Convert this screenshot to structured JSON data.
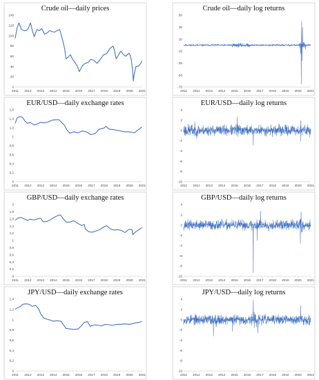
{
  "figure": {
    "color": "#4472C4"
  },
  "chart_data": [
    {
      "id": "oil_prices",
      "type": "line",
      "title": "Crude oil—daily prices",
      "x_ticks": [
        "2011",
        "2012",
        "2013",
        "2014",
        "2015",
        "2016",
        "2017",
        "2018",
        "2019",
        "2020",
        "2021"
      ],
      "ylim": [
        0,
        140
      ],
      "y_ticks": [
        "0",
        "20",
        "40",
        "60",
        "80",
        "100",
        "120",
        "140"
      ],
      "series": [
        {
          "x": [
            2011.0,
            2011.15,
            2011.3,
            2011.5,
            2011.7,
            2011.85,
            2012.0,
            2012.2,
            2012.35,
            2012.5,
            2012.7,
            2012.9,
            2013.1,
            2013.3,
            2013.5,
            2013.7,
            2013.9,
            2014.1,
            2014.3,
            2014.5,
            2014.6,
            2014.75,
            2014.9,
            2015.0,
            2015.15,
            2015.35,
            2015.5,
            2015.7,
            2015.9,
            2016.05,
            2016.3,
            2016.5,
            2016.75,
            2016.95,
            2017.2,
            2017.45,
            2017.7,
            2017.95,
            2018.2,
            2018.45,
            2018.7,
            2018.8,
            2018.95,
            2019.15,
            2019.3,
            2019.5,
            2019.7,
            2019.95,
            2020.05,
            2020.15,
            2020.25,
            2020.3,
            2020.35,
            2020.5,
            2020.7,
            2020.85,
            2020.98
          ],
          "y": [
            95,
            115,
            125,
            112,
            110,
            110,
            113,
            125,
            110,
            98,
            112,
            110,
            114,
            103,
            105,
            110,
            108,
            107,
            110,
            112,
            104,
            90,
            74,
            55,
            58,
            63,
            55,
            48,
            40,
            30,
            42,
            46,
            48,
            54,
            52,
            46,
            54,
            63,
            65,
            75,
            80,
            73,
            55,
            63,
            70,
            64,
            60,
            66,
            62,
            52,
            30,
            12,
            22,
            40,
            41,
            45,
            51
          ]
        }
      ]
    },
    {
      "id": "oil_returns",
      "type": "line",
      "title": "Crude oil—daily log returns",
      "x_ticks": [
        "2011",
        "2012",
        "2013",
        "2014",
        "2015",
        "2016",
        "2017",
        "2018",
        "2019",
        "2020",
        "2021"
      ],
      "ylim": [
        -70,
        50
      ],
      "y_ticks": [
        "-70",
        "-50",
        "-30",
        "-10",
        "10",
        "30",
        "50"
      ],
      "series": [
        {
          "x_start": 2011.0,
          "x_end": 2021.0,
          "n": 700,
          "seed": 11,
          "base": 1.3,
          "vol_periods": [
            {
              "from": 2014.8,
              "to": 2016.2,
              "scale": 2.1
            },
            {
              "from": 2020.1,
              "to": 2020.6,
              "scale": 3.6
            }
          ],
          "spikes": [
            {
              "x": 2020.25,
              "y": -65
            },
            {
              "x": 2020.29,
              "y": 40
            },
            {
              "x": 2020.32,
              "y": -26
            },
            {
              "x": 2020.36,
              "y": 30
            },
            {
              "x": 2020.2,
              "y": -14
            }
          ]
        }
      ]
    },
    {
      "id": "eurusd_rates",
      "type": "line",
      "title": "EUR/USD—daily exchange rates",
      "x_ticks": [
        "2011",
        "2012",
        "2013",
        "2014",
        "2015",
        "2016",
        "2017",
        "2018",
        "2019",
        "2020",
        "2021"
      ],
      "ylim": [
        0,
        1.6
      ],
      "y_ticks": [
        "0",
        "0,2",
        "0,4",
        "0,6",
        "0,8",
        "1",
        "1,2",
        "1,4",
        "1,6"
      ],
      "series": [
        {
          "x": [
            2011.0,
            2011.15,
            2011.35,
            2011.55,
            2011.75,
            2011.95,
            2012.2,
            2012.5,
            2012.75,
            2013.0,
            2013.3,
            2013.6,
            2013.9,
            2014.2,
            2014.45,
            2014.65,
            2014.9,
            2015.05,
            2015.3,
            2015.6,
            2015.95,
            2016.3,
            2016.6,
            2016.95,
            2017.3,
            2017.6,
            2017.95,
            2018.15,
            2018.4,
            2018.7,
            2018.95,
            2019.3,
            2019.6,
            2019.95,
            2020.2,
            2020.4,
            2020.6,
            2020.8,
            2020.98
          ],
          "y": [
            1.3,
            1.42,
            1.45,
            1.44,
            1.36,
            1.3,
            1.32,
            1.26,
            1.29,
            1.32,
            1.31,
            1.33,
            1.37,
            1.38,
            1.38,
            1.32,
            1.25,
            1.16,
            1.08,
            1.11,
            1.09,
            1.13,
            1.11,
            1.05,
            1.07,
            1.17,
            1.19,
            1.23,
            1.17,
            1.16,
            1.15,
            1.13,
            1.11,
            1.11,
            1.1,
            1.09,
            1.14,
            1.18,
            1.22
          ]
        }
      ]
    },
    {
      "id": "eurusd_returns",
      "type": "line",
      "title": "EUR/USD—daily log returns",
      "x_ticks": [
        "2011",
        "2012",
        "2013",
        "2014",
        "2015",
        "2016",
        "2017",
        "2018",
        "2019",
        "2020",
        "2021"
      ],
      "ylim": [
        -10,
        4
      ],
      "y_ticks": [
        "-10",
        "-8",
        "-6",
        "-4",
        "-2",
        "0",
        "2",
        "4"
      ],
      "series": [
        {
          "x_start": 2011.0,
          "x_end": 2021.0,
          "n": 700,
          "seed": 23,
          "base": 0.85,
          "vol_periods": [
            {
              "from": 2011.0,
              "to": 2012.2,
              "scale": 1.25
            },
            {
              "from": 2015.0,
              "to": 2015.6,
              "scale": 1.2
            }
          ],
          "spikes": [
            {
              "x": 2016.48,
              "y": -2.9
            },
            {
              "x": 2015.2,
              "y": 2.6
            },
            {
              "x": 2020.2,
              "y": -2.1
            },
            {
              "x": 2020.23,
              "y": 2.0
            }
          ]
        }
      ]
    },
    {
      "id": "gbpusd_rates",
      "type": "line",
      "title": "GBP/USD—daily exchange rates",
      "x_ticks": [
        "2011",
        "2012",
        "2013",
        "2014",
        "2015",
        "2016",
        "2017",
        "2018",
        "2019",
        "2020",
        "2021"
      ],
      "ylim": [
        0,
        2
      ],
      "y_ticks": [
        "0",
        "0,2",
        "0,4",
        "0,6",
        "0,8",
        "1",
        "1,2",
        "1,4",
        "1,6",
        "1,8",
        "2"
      ],
      "series": [
        {
          "x": [
            2011.0,
            2011.2,
            2011.45,
            2011.7,
            2011.95,
            2012.2,
            2012.5,
            2012.75,
            2013.0,
            2013.2,
            2013.5,
            2013.8,
            2014.1,
            2014.4,
            2014.55,
            2014.8,
            2015.0,
            2015.3,
            2015.6,
            2015.95,
            2016.2,
            2016.45,
            2016.5,
            2016.8,
            2017.1,
            2017.4,
            2017.7,
            2018.0,
            2018.2,
            2018.5,
            2018.8,
            2019.1,
            2019.4,
            2019.65,
            2019.95,
            2020.2,
            2020.25,
            2020.45,
            2020.7,
            2020.98
          ],
          "y": [
            1.56,
            1.62,
            1.64,
            1.6,
            1.56,
            1.59,
            1.57,
            1.6,
            1.62,
            1.52,
            1.53,
            1.58,
            1.65,
            1.7,
            1.71,
            1.6,
            1.51,
            1.51,
            1.55,
            1.47,
            1.42,
            1.44,
            1.33,
            1.24,
            1.23,
            1.27,
            1.31,
            1.38,
            1.41,
            1.32,
            1.29,
            1.3,
            1.27,
            1.22,
            1.31,
            1.3,
            1.16,
            1.23,
            1.29,
            1.36
          ]
        }
      ]
    },
    {
      "id": "gbpusd_returns",
      "type": "line",
      "title": "GBP/USD—daily log returns",
      "x_ticks": [
        "2011",
        "2012",
        "2013",
        "2014",
        "2015",
        "2016",
        "2017",
        "2018",
        "2019",
        "2020",
        "2021"
      ],
      "ylim": [
        -10,
        4
      ],
      "y_ticks": [
        "-10",
        "-8",
        "-6",
        "-4",
        "-2",
        "0",
        "2",
        "4"
      ],
      "series": [
        {
          "x_start": 2011.0,
          "x_end": 2021.0,
          "n": 700,
          "seed": 37,
          "base": 0.8,
          "vol_periods": [
            {
              "from": 2016.3,
              "to": 2017.0,
              "scale": 1.3
            },
            {
              "from": 2020.1,
              "to": 2020.4,
              "scale": 1.6
            }
          ],
          "spikes": [
            {
              "x": 2016.48,
              "y": -9.3
            },
            {
              "x": 2016.78,
              "y": -3.0
            },
            {
              "x": 2017.05,
              "y": 2.7
            },
            {
              "x": 2020.18,
              "y": -3.6
            },
            {
              "x": 2020.24,
              "y": 2.6
            }
          ]
        }
      ]
    },
    {
      "id": "jpyusd_rates",
      "type": "line",
      "title": "JPY/USD—daily exchange rates",
      "x_ticks": [
        "2011",
        "2012",
        "2013",
        "2014",
        "2015",
        "2016",
        "2017",
        "2018",
        "2019",
        "2020",
        "2021"
      ],
      "ylim": [
        0,
        1.4
      ],
      "y_ticks": [
        "0",
        "0,2",
        "0,4",
        "0,6",
        "0,8",
        "1",
        "1,2",
        "1,4"
      ],
      "series": [
        {
          "x": [
            2011.0,
            2011.15,
            2011.35,
            2011.6,
            2011.85,
            2012.1,
            2012.35,
            2012.6,
            2012.85,
            2013.0,
            2013.25,
            2013.5,
            2013.8,
            2014.0,
            2014.3,
            2014.6,
            2014.8,
            2015.0,
            2015.3,
            2015.6,
            2015.95,
            2016.2,
            2016.45,
            2016.7,
            2016.9,
            2017.2,
            2017.5,
            2017.8,
            2018.1,
            2018.4,
            2018.7,
            2019.0,
            2019.3,
            2019.6,
            2019.95,
            2020.2,
            2020.5,
            2020.8,
            2020.98
          ],
          "y": [
            1.2,
            1.23,
            1.25,
            1.3,
            1.31,
            1.3,
            1.26,
            1.28,
            1.21,
            1.12,
            1.03,
            1.01,
            0.99,
            0.97,
            0.98,
            0.97,
            0.9,
            0.83,
            0.82,
            0.81,
            0.82,
            0.88,
            0.95,
            0.96,
            0.87,
            0.9,
            0.89,
            0.88,
            0.91,
            0.9,
            0.89,
            0.91,
            0.91,
            0.92,
            0.91,
            0.92,
            0.94,
            0.95,
            0.97
          ]
        }
      ]
    },
    {
      "id": "jpyusd_returns",
      "type": "line",
      "title": "JPY/USD—daily log returns",
      "x_ticks": [
        "2011",
        "2012",
        "2013",
        "2014",
        "2015",
        "2016",
        "2017",
        "2018",
        "2019",
        "2020",
        "2021"
      ],
      "ylim": [
        -10,
        4
      ],
      "y_ticks": [
        "-10",
        "-8",
        "-6",
        "-4",
        "-2",
        "0",
        "2",
        "4"
      ],
      "series": [
        {
          "x_start": 2011.0,
          "x_end": 2021.0,
          "n": 700,
          "seed": 53,
          "base": 0.8,
          "vol_periods": [
            {
              "from": 2013.0,
              "to": 2013.6,
              "scale": 1.3
            },
            {
              "from": 2016.0,
              "to": 2016.9,
              "scale": 1.25
            }
          ],
          "spikes": [
            {
              "x": 2016.48,
              "y": 3.8
            },
            {
              "x": 2013.35,
              "y": -3.2
            },
            {
              "x": 2016.85,
              "y": -2.6
            },
            {
              "x": 2020.2,
              "y": 2.8
            },
            {
              "x": 2014.85,
              "y": -2.3
            }
          ]
        }
      ]
    }
  ]
}
